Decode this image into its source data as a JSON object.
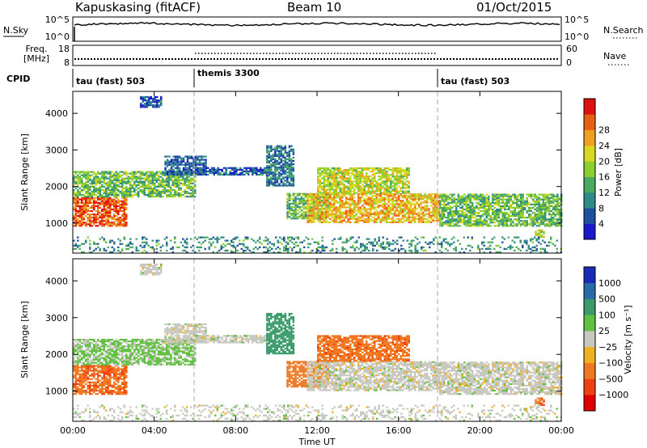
{
  "chart_data": {
    "type": "heatmap",
    "header": {
      "station": "Kapuskasing (fitACF)",
      "beam": "Beam 10",
      "date": "01/Oct/2015"
    },
    "panels": {
      "nsky": {
        "left_label": "N.Sky",
        "left_ticks": [
          "10^5",
          "10^0"
        ],
        "right_label": "N.Search",
        "right_ticks": [
          "10^5",
          "10^0"
        ]
      },
      "freq": {
        "left_label_1": "Freq.",
        "left_label_2": "[MHz]",
        "left_ticks": [
          "18",
          "8"
        ],
        "right_label": "Nave",
        "right_ticks": [
          "60",
          "0"
        ]
      },
      "cpid": {
        "label": "CPID",
        "segments": [
          {
            "start": 0,
            "end": 6,
            "name": "tau (fast) 503"
          },
          {
            "start": 6,
            "end": 18,
            "name": "themis 3300"
          },
          {
            "start": 18,
            "end": 24,
            "name": "tau (fast) 503"
          }
        ]
      }
    },
    "x_axis": {
      "label": "Time UT",
      "range": [
        0,
        24
      ],
      "tick_labels": [
        "00:00",
        "04:00",
        "08:00",
        "12:00",
        "16:00",
        "20:00",
        "00:00"
      ]
    },
    "y_axis": {
      "label": "Slant Range [km]",
      "range": [
        180,
        4600
      ],
      "tick_labels": [
        "1000",
        "2000",
        "3000",
        "4000"
      ]
    },
    "power": {
      "colorbar_label": "Power [dB]",
      "colorbar_ticks": [
        "4",
        "8",
        "12",
        "16",
        "20",
        "24",
        "28"
      ],
      "range": [
        0,
        32
      ],
      "colors": [
        "#1a1acc",
        "#1f4fa0",
        "#2f8a8a",
        "#4aa860",
        "#8ccf30",
        "#d8d820",
        "#f0a020",
        "#e86010",
        "#e01010"
      ]
    },
    "velocity": {
      "colorbar_label": "Velocity [m s⁻¹]",
      "colorbar_ticks": [
        "1000",
        "500",
        "100",
        "25",
        "−25",
        "−100",
        "−500",
        "−1000"
      ],
      "colors": [
        "#1a2ab8",
        "#2a6aa8",
        "#3a9a6a",
        "#60c040",
        "#c8c8c0",
        "#f0b020",
        "#f07820",
        "#f04010",
        "#e00000"
      ]
    },
    "echo_regions": [
      {
        "t": [
          0.0,
          2.6
        ],
        "r": [
          900,
          1700
        ],
        "power": 27,
        "velocity": -400
      },
      {
        "t": [
          0.0,
          6.0
        ],
        "r": [
          1700,
          2400
        ],
        "power": 14,
        "velocity": 40
      },
      {
        "t": [
          3.3,
          4.3
        ],
        "r": [
          4150,
          4450
        ],
        "power": 6,
        "velocity": 0
      },
      {
        "t": [
          4.5,
          6.5
        ],
        "r": [
          2300,
          2800
        ],
        "power": 6,
        "velocity": 0
      },
      {
        "t": [
          6.0,
          9.5
        ],
        "r": [
          2300,
          2500
        ],
        "power": 6,
        "velocity": 0
      },
      {
        "t": [
          9.5,
          10.8
        ],
        "r": [
          2000,
          3100
        ],
        "power": 8,
        "velocity": 300
      },
      {
        "t": [
          10.5,
          12.5
        ],
        "r": [
          1100,
          1800
        ],
        "power": 14,
        "velocity": -300
      },
      {
        "t": [
          11.5,
          18.0
        ],
        "r": [
          1000,
          1800
        ],
        "power": 22,
        "velocity": 0
      },
      {
        "t": [
          12.0,
          16.5
        ],
        "r": [
          1800,
          2500
        ],
        "power": 18,
        "velocity": -350
      },
      {
        "t": [
          18.0,
          24.0
        ],
        "r": [
          900,
          1800
        ],
        "power": 14,
        "velocity": 0
      },
      {
        "t": [
          22.7,
          23.1
        ],
        "r": [
          600,
          800
        ],
        "power": 18,
        "velocity": -400
      },
      {
        "t": [
          0.0,
          24.0
        ],
        "r": [
          180,
          600
        ],
        "power": 10,
        "velocity": 0
      }
    ]
  }
}
